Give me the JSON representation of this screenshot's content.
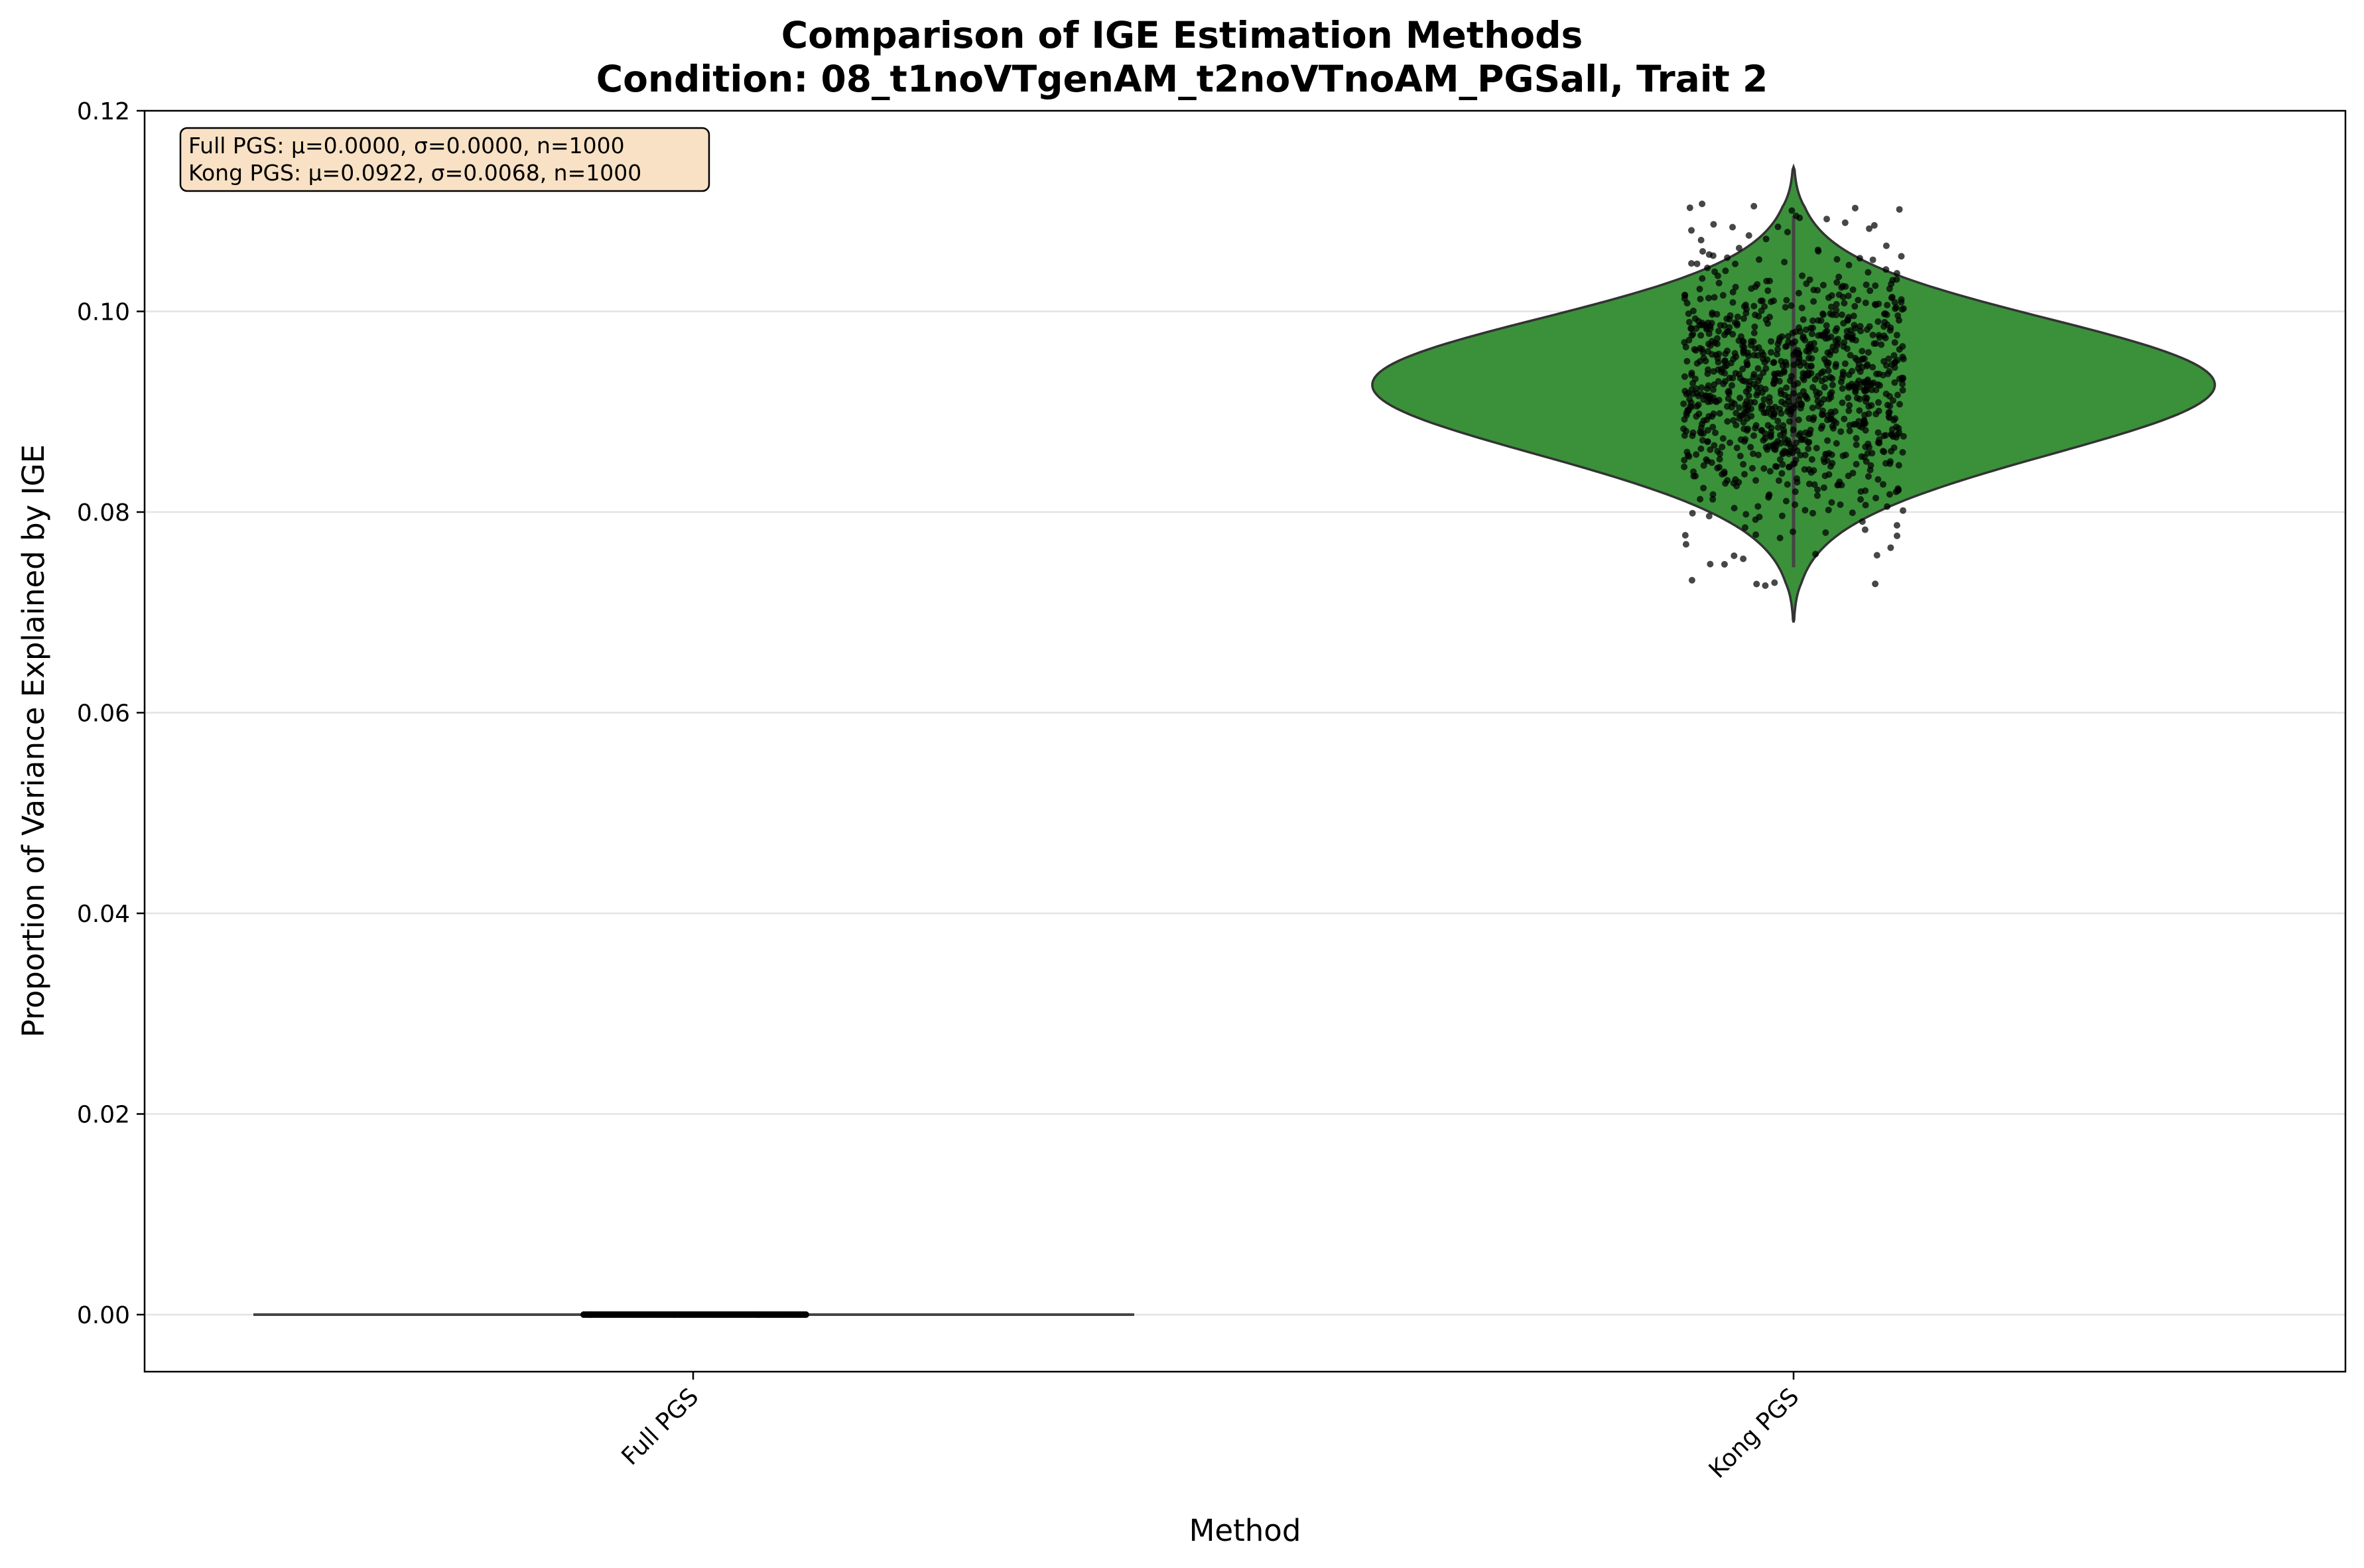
{
  "chart_data": {
    "type": "violin",
    "title_line1": "Comparison of IGE Estimation Methods",
    "title_line2": "Condition: 08_t1noVTgenAM_t2noVTnoAM_PGSall, Trait 2",
    "xlabel": "Method",
    "ylabel": "Proportion of Variance Explained by IGE",
    "categories": [
      "Full PGS",
      "Kong PGS"
    ],
    "ylim": [
      -0.0057,
      0.12
    ],
    "yticks": [
      0.0,
      0.02,
      0.04,
      0.06,
      0.08,
      0.1,
      0.12
    ],
    "ytick_labels": [
      "0.00",
      "0.02",
      "0.04",
      "0.06",
      "0.08",
      "0.10",
      "0.12"
    ],
    "grid": "horizontal",
    "colors": {
      "kong_violin": "#3a913a",
      "full_line": "#444444",
      "points": "#000000",
      "stats_box": "#f8e1c4"
    },
    "series": [
      {
        "name": "Full PGS",
        "mean": 0.0,
        "sd": 0.0,
        "n": 1000,
        "min": 0.0,
        "max": 0.0
      },
      {
        "name": "Kong PGS",
        "mean": 0.0922,
        "sd": 0.0068,
        "n": 1000,
        "min": 0.069,
        "max": 0.1144
      }
    ],
    "stats_box": [
      "Full PGS: μ=0.0000, σ=0.0000, n=1000",
      "Kong PGS: μ=0.0922, σ=0.0068, n=1000"
    ]
  }
}
